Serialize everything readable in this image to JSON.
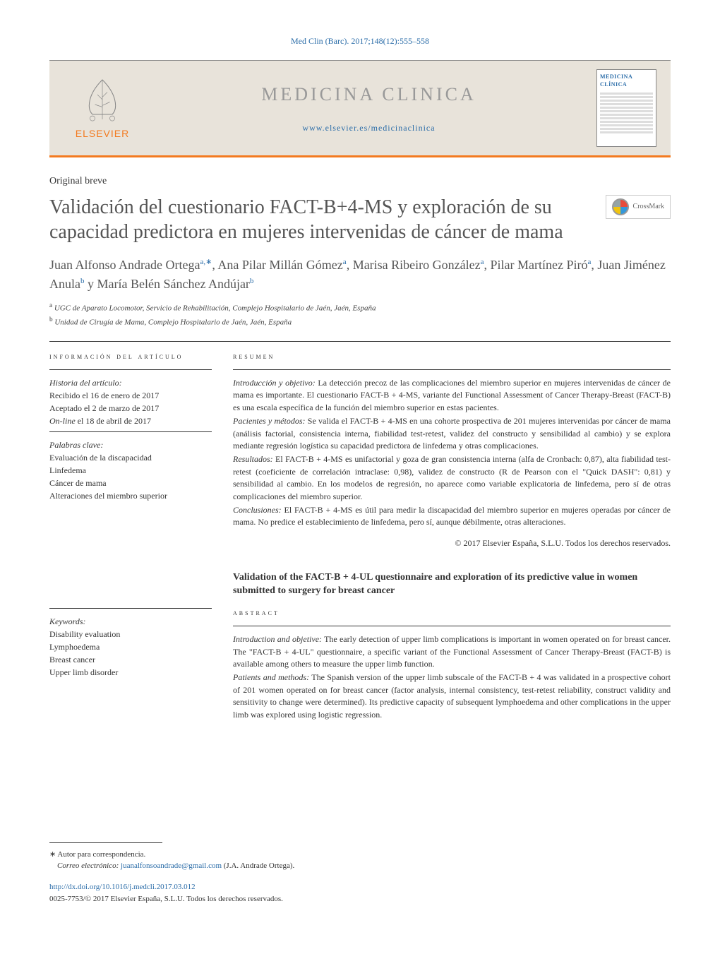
{
  "citation": "Med Clin (Barc). 2017;148(12):555–558",
  "header": {
    "publisher": "ELSEVIER",
    "journal_name": "MEDICINA CLINICA",
    "journal_url": "www.elsevier.es/medicinaclinica",
    "cover_label": "MEDICINA CLÍNICA"
  },
  "article_type": "Original breve",
  "title_es": "Validación del cuestionario FACT-B+4-MS y exploración de su capacidad predictora en mujeres intervenidas de cáncer de mama",
  "crossmark_label": "CrossMark",
  "authors": [
    {
      "name": "Juan Alfonso Andrade Ortega",
      "aff": "a,∗"
    },
    {
      "name": "Ana Pilar Millán Gómez",
      "aff": "a"
    },
    {
      "name": "Marisa Ribeiro González",
      "aff": "a"
    },
    {
      "name": "Pilar Martínez Piró",
      "aff": "a"
    },
    {
      "name": "Juan Jiménez Anula",
      "aff": "b"
    },
    {
      "name": "María Belén Sánchez Andújar",
      "aff": "b"
    }
  ],
  "affiliations": [
    {
      "sup": "a",
      "text": "UGC de Aparato Locomotor, Servicio de Rehabilitación, Complejo Hospitalario de Jaén, Jaén, España"
    },
    {
      "sup": "b",
      "text": "Unidad de Cirugía de Mama, Complejo Hospitalario de Jaén, Jaén, España"
    }
  ],
  "info_heading": "información del artículo",
  "history": {
    "label": "Historia del artículo:",
    "received": "Recibido el 16 de enero de 2017",
    "accepted": "Aceptado el 2 de marzo de 2017",
    "online": "On-line el 18 de abril de 2017"
  },
  "keywords_es": {
    "label": "Palabras clave:",
    "items": [
      "Evaluación de la discapacidad",
      "Linfedema",
      "Cáncer de mama",
      "Alteraciones del miembro superior"
    ]
  },
  "resumen": {
    "heading": "resumen",
    "sections": [
      {
        "label": "Introducción y objetivo:",
        "text": "La detección precoz de las complicaciones del miembro superior en mujeres intervenidas de cáncer de mama es importante. El cuestionario FACT-B + 4-MS, variante del Functional Assessment of Cancer Therapy-Breast (FACT-B) es una escala específica de la función del miembro superior en estas pacientes."
      },
      {
        "label": "Pacientes y métodos:",
        "text": "Se valida el FACT-B + 4-MS en una cohorte prospectiva de 201 mujeres intervenidas por cáncer de mama (análisis factorial, consistencia interna, fiabilidad test-retest, validez del constructo y sensibilidad al cambio) y se explora mediante regresión logística su capacidad predictora de linfedema y otras complicaciones."
      },
      {
        "label": "Resultados:",
        "text": "El FACT-B + 4-MS es unifactorial y goza de gran consistencia interna (alfa de Cronbach: 0,87), alta fiabilidad test-retest (coeficiente de correlación intraclase: 0,98), validez de constructo (R de Pearson con el \"Quick DASH\": 0,81) y sensibilidad al cambio. En los modelos de regresión, no aparece como variable explicatoria de linfedema, pero sí de otras complicaciones del miembro superior."
      },
      {
        "label": "Conclusiones:",
        "text": "El FACT-B + 4-MS es útil para medir la discapacidad del miembro superior en mujeres operadas por cáncer de mama. No predice el establecimiento de linfedema, pero sí, aunque débilmente, otras alteraciones."
      }
    ],
    "copyright": "© 2017 Elsevier España, S.L.U. Todos los derechos reservados."
  },
  "title_en": "Validation of the FACT-B + 4-UL questionnaire and exploration of its predictive value in women submitted to surgery for breast cancer",
  "keywords_en": {
    "label": "Keywords:",
    "items": [
      "Disability evaluation",
      "Lymphoedema",
      "Breast cancer",
      "Upper limb disorder"
    ]
  },
  "abstract_en": {
    "heading": "abstract",
    "sections": [
      {
        "label": "Introduction and objetive:",
        "text": "The early detection of upper limb complications is important in women operated on for breast cancer. The \"FACT-B + 4-UL\" questionnaire, a specific variant of the Functional Assessment of Cancer Therapy-Breast (FACT-B) is available among others to measure the upper limb function."
      },
      {
        "label": "Patients and methods:",
        "text": "The Spanish version of the upper limb subscale of the FACT-B + 4 was validated in a prospective cohort of 201 women operated on for breast cancer (factor analysis, internal consistency, test-retest reliability, construct validity and sensitivity to change were determined). Its predictive capacity of subsequent lymphoedema and other complications in the upper limb was explored using logistic regression."
      }
    ]
  },
  "corresp": {
    "marker": "∗",
    "label": "Autor para correspondencia.",
    "email_label": "Correo electrónico:",
    "email": "juanalfonsoandrade@gmail.com",
    "name": "(J.A. Andrade Ortega)."
  },
  "doi": "http://dx.doi.org/10.1016/j.medcli.2017.03.012",
  "footer_copyright": "0025-7753/© 2017 Elsevier España, S.L.U. Todos los derechos reservados."
}
